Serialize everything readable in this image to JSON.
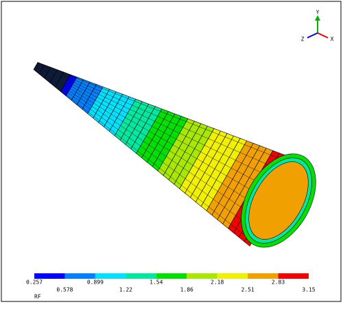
{
  "legend": {
    "title": "RF",
    "ticks": [
      0.257,
      0.578,
      0.899,
      1.22,
      1.54,
      1.86,
      2.18,
      2.51,
      2.83,
      3.15
    ],
    "colors": [
      "#0000ff",
      "#0080ff",
      "#00e0ff",
      "#00e8a0",
      "#00e000",
      "#a8e800",
      "#f0f000",
      "#f0a000",
      "#f00000"
    ]
  },
  "triad": {
    "y": "Y",
    "z": "Z",
    "x": "X"
  }
}
